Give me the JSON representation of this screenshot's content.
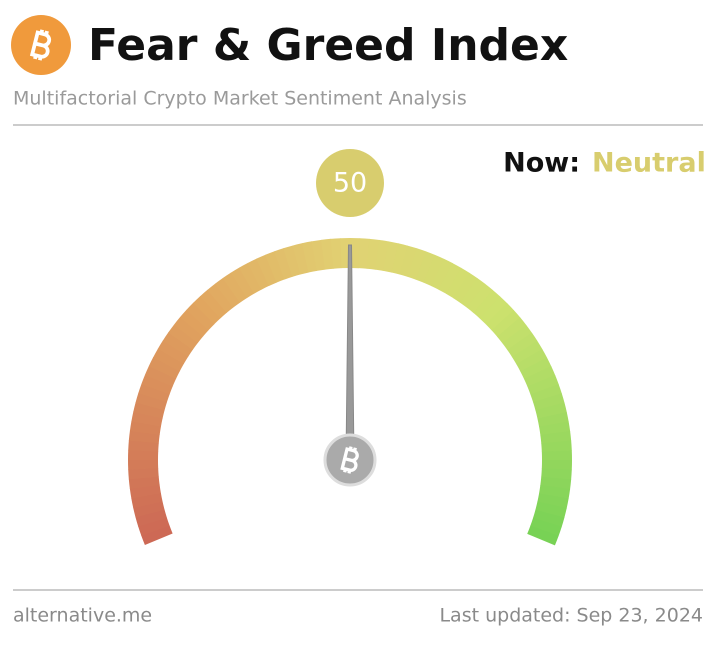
{
  "chart_data": {
    "type": "gauge",
    "title": "Fear & Greed Index",
    "subtitle": "Multifactorial Crypto Market Sentiment Analysis",
    "status_prefix": "Now:",
    "status": "Neutral",
    "color": "#d8cd6e",
    "value": 50,
    "ylim": [
      0,
      100
    ],
    "source": "alternative.me",
    "updated": "Last updated: Sep 23, 2024"
  }
}
